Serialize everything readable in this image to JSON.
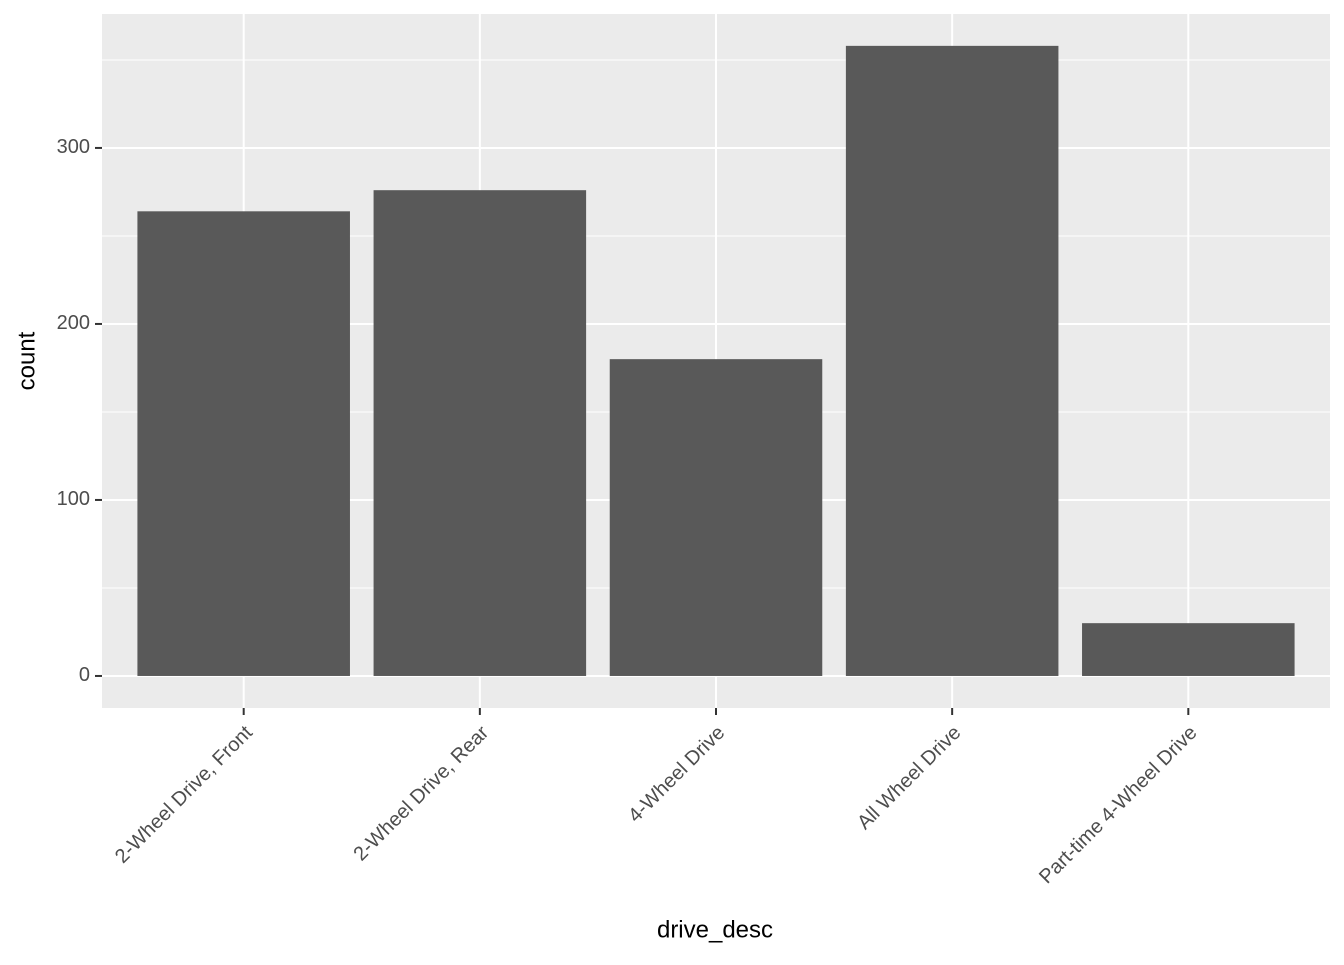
{
  "chart_data": {
    "type": "bar",
    "x_label": "drive_desc",
    "y_label": "count",
    "categories": [
      "2-Wheel Drive, Front",
      "2-Wheel Drive, Rear",
      "4-Wheel Drive",
      "All Wheel Drive",
      "Part-time 4-Wheel Drive"
    ],
    "values": [
      264,
      276,
      180,
      358,
      30
    ],
    "color": "#595959",
    "ylim": [
      -18.2,
      376.1
    ],
    "yticks": [
      0,
      100,
      200,
      300
    ],
    "grid": true
  }
}
